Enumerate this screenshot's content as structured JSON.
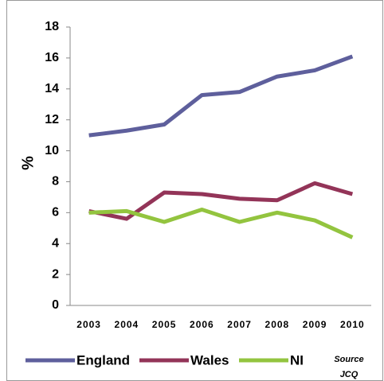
{
  "chart_data": {
    "type": "line",
    "ylabel": "%",
    "categories": [
      "2003",
      "2004",
      "2005",
      "2006",
      "2007",
      "2008",
      "2009",
      "2010"
    ],
    "series": [
      {
        "name": "England",
        "color": "#5e5f9c",
        "values": [
          11.0,
          11.3,
          11.7,
          13.6,
          13.8,
          14.8,
          15.2,
          16.1
        ]
      },
      {
        "name": "Wales",
        "color": "#933458",
        "values": [
          6.1,
          5.6,
          7.3,
          7.2,
          6.9,
          6.8,
          7.9,
          7.2
        ]
      },
      {
        "name": "NI",
        "color": "#93c43f",
        "values": [
          6.0,
          6.1,
          5.4,
          6.2,
          5.4,
          6.0,
          5.5,
          4.4
        ]
      }
    ],
    "annotations": [
      "Source",
      "JCQ"
    ],
    "ylim": [
      0,
      18
    ],
    "yticks": [
      0,
      2,
      4,
      6,
      8,
      10,
      12,
      14,
      16,
      18
    ],
    "grid": false,
    "legend": "bottom"
  }
}
